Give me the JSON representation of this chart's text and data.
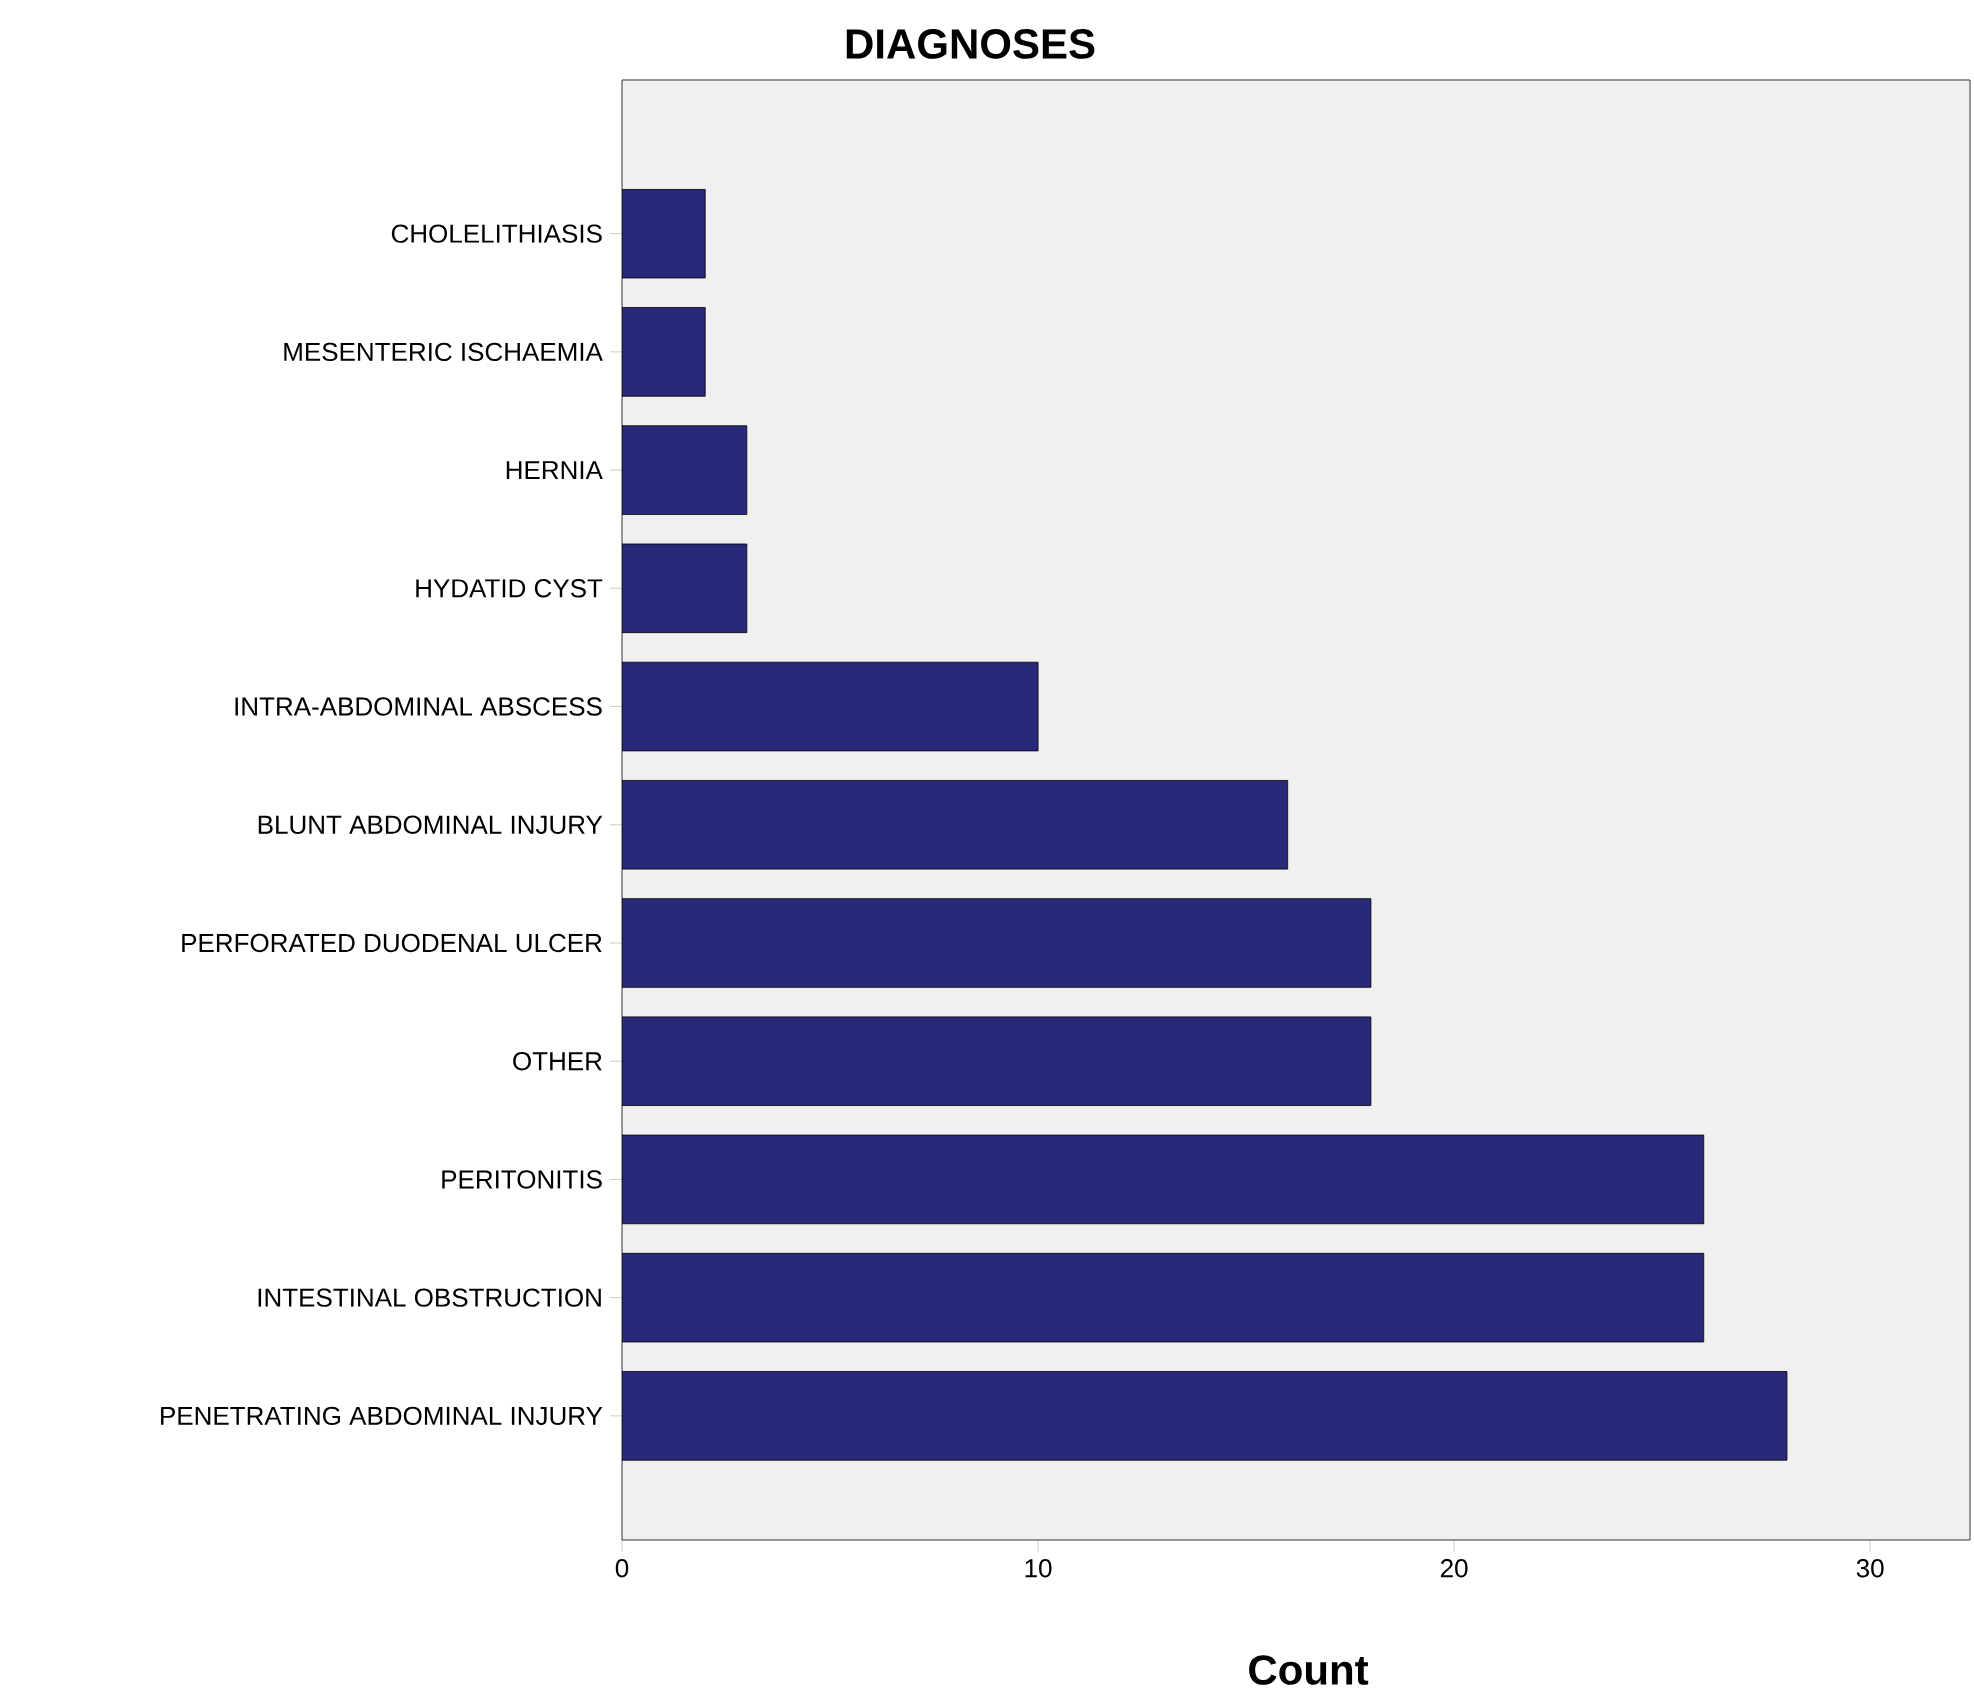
{
  "chart_data": {
    "type": "bar",
    "orientation": "horizontal",
    "title": "DIAGNOSES",
    "xlabel": "Count",
    "categories": [
      "CHOLELITHIASIS",
      "MESENTERIC ISCHAEMIA",
      "HERNIA",
      "HYDATID CYST",
      "INTRA-ABDOMINAL ABSCESS",
      "BLUNT ABDOMINAL INJURY",
      "PERFORATED DUODENAL ULCER",
      "OTHER",
      "PERITONITIS",
      "INTESTINAL OBSTRUCTION",
      "PENETRATING ABDOMINAL INJURY"
    ],
    "values": [
      2,
      2,
      3,
      3,
      10,
      16,
      18,
      18,
      26,
      26,
      28
    ],
    "color": "#29297a",
    "xlim": [
      0,
      32.4
    ],
    "xticks": [
      0,
      10,
      20,
      30
    ],
    "grid": false
  }
}
